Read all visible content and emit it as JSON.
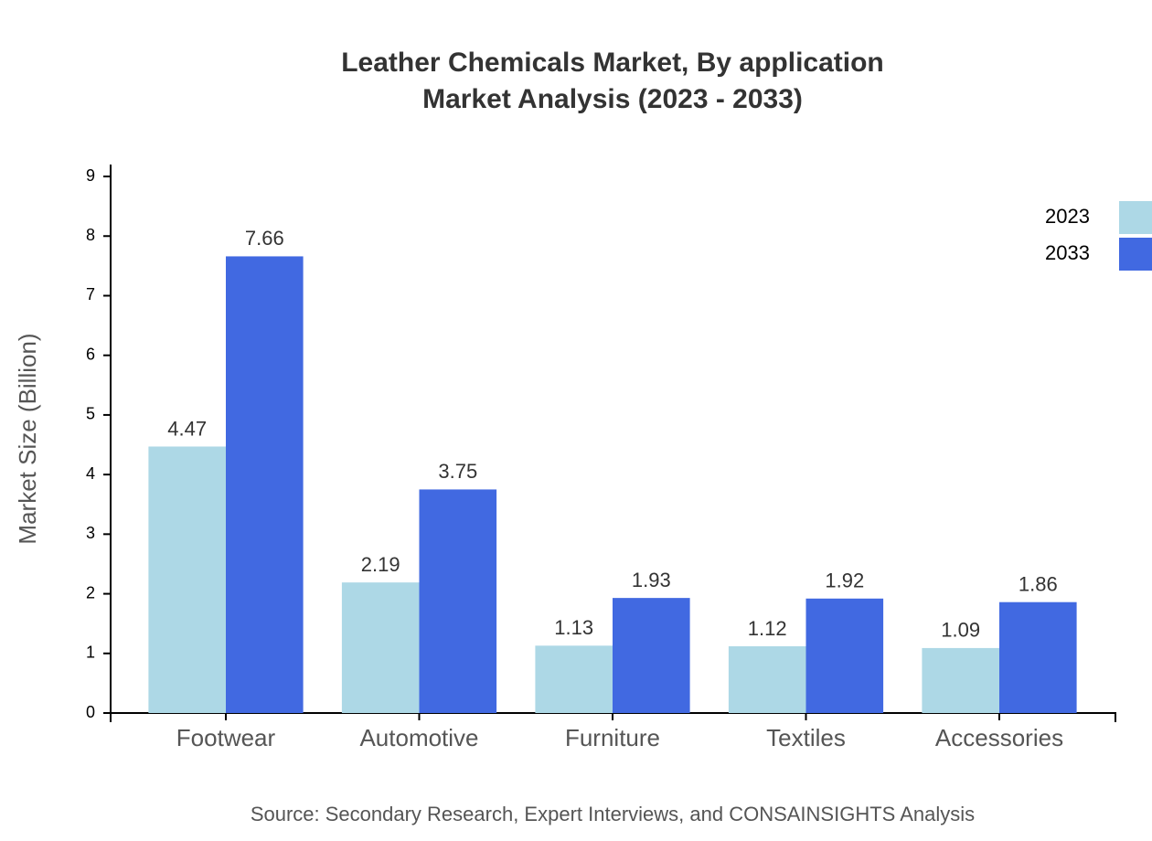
{
  "chart_data": {
    "type": "bar",
    "title": "Leather Chemicals Market, By application",
    "subtitle": "Market Analysis (2023 - 2033)",
    "y_label": "Market Size (Billion)",
    "source": "Source: Secondary Research, Expert Interviews, and CONSAINSIGHTS Analysis",
    "categories": [
      "Footwear",
      "Automotive",
      "Furniture",
      "Textiles",
      "Accessories"
    ],
    "series": [
      {
        "name": "2023",
        "color": "#add8e6",
        "values": [
          4.47,
          2.19,
          1.13,
          1.12,
          1.09
        ]
      },
      {
        "name": "2033",
        "color": "#4169e1",
        "values": [
          7.66,
          3.75,
          1.93,
          1.92,
          1.86
        ]
      }
    ],
    "ylim": [
      0,
      9.2
    ],
    "yticks": [
      0,
      1,
      2,
      3,
      4,
      5,
      6,
      7,
      8,
      9
    ],
    "legend": "top-right"
  }
}
